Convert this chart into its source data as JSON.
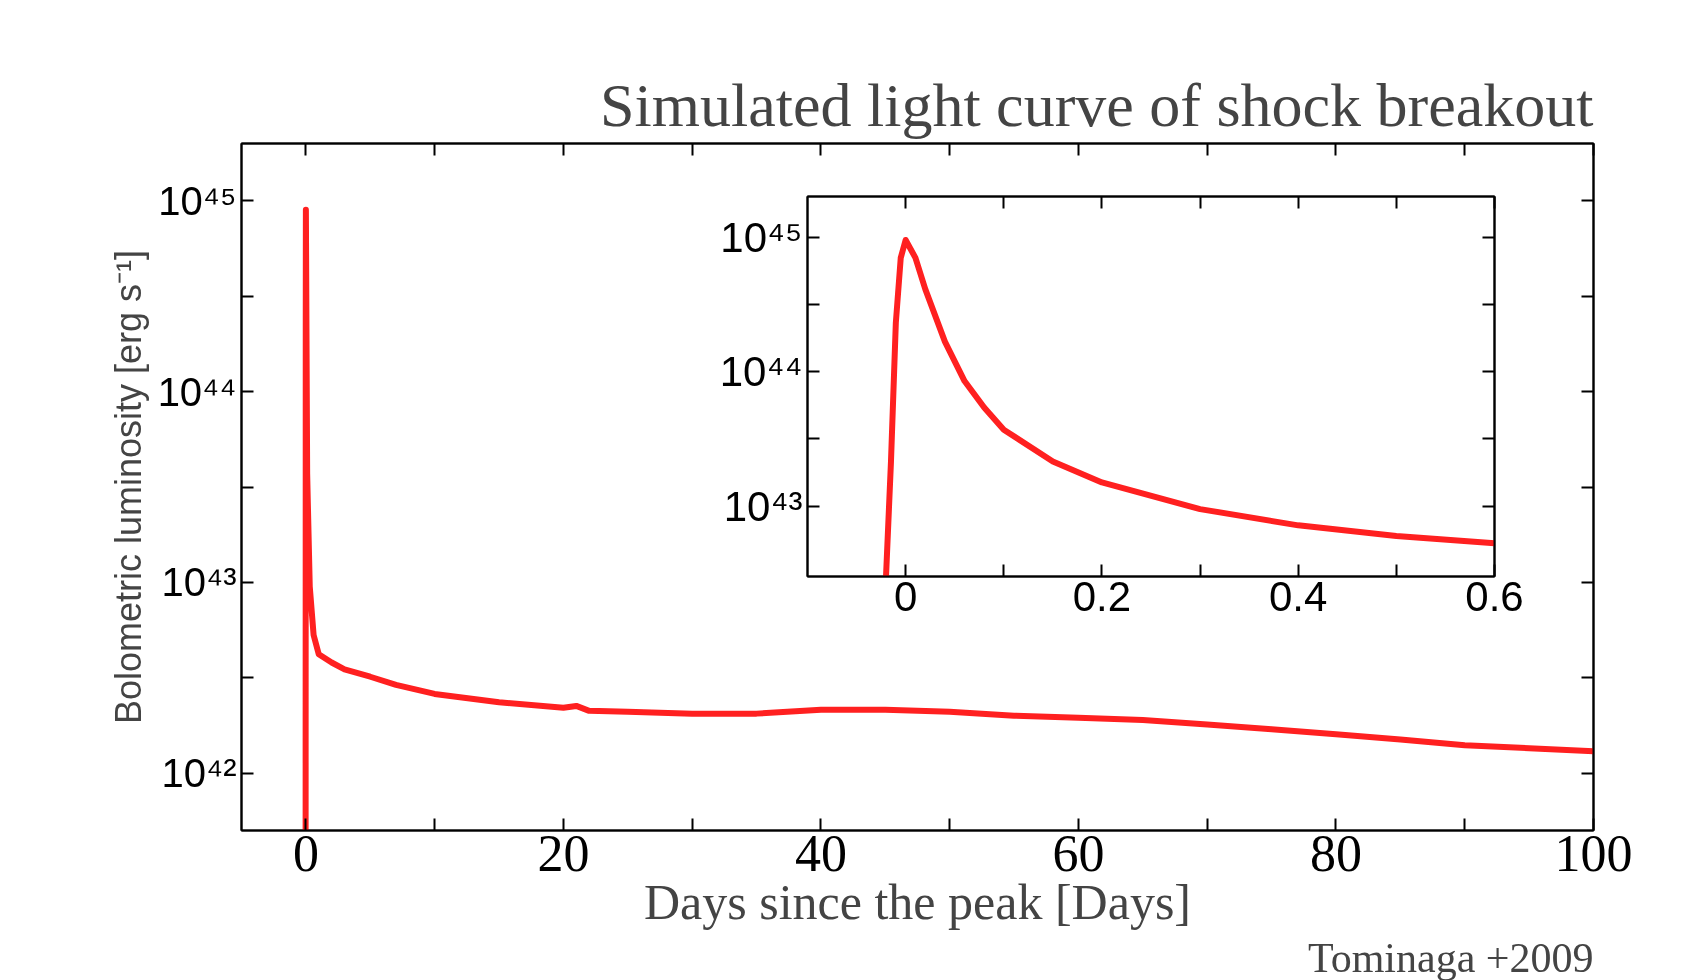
{
  "chart_data": [
    {
      "type": "line",
      "title": "Simulated light curve of shock breakout",
      "xlabel": "Days since the peak [Days]",
      "ylabel": "Bolometric luminosity [erg s⁻¹]",
      "annotations": [
        "Tominaga +2009"
      ],
      "log": "y",
      "color": "#ff2020",
      "grid": false,
      "x": [
        -0.02,
        -0.01,
        0,
        0.1,
        0.3,
        0.6,
        1,
        2,
        3,
        5,
        7,
        10,
        15,
        20,
        21,
        22,
        25,
        30,
        35,
        40,
        45,
        50,
        55,
        60,
        65,
        70,
        75,
        80,
        85,
        90,
        95,
        100
      ],
      "values": [
        5e+41,
        2.3e+44,
        9e+44,
        3.7e+43,
        9.5e+42,
        5.3e+42,
        4.2e+42,
        3.8e+42,
        3.5e+42,
        3.2e+42,
        2.9e+42,
        2.6e+42,
        2.35e+42,
        2.2e+42,
        2.25e+42,
        2.12e+42,
        2.1e+42,
        2.05e+42,
        2.05e+42,
        2.15e+42,
        2.15e+42,
        2.1e+42,
        2e+42,
        1.95e+42,
        1.9e+42,
        1.8e+42,
        1.7e+42,
        1.6e+42,
        1.5e+42,
        1.4e+42,
        1.35e+42,
        1.3e+42
      ],
      "xlim": [
        -5,
        100
      ],
      "ylim": [
        5e+41,
        2e+45
      ],
      "xticks": [
        0,
        {
          "value": 10,
          "label": null
        },
        20,
        {
          "value": 30,
          "label": null
        },
        40,
        {
          "value": 50,
          "label": null
        },
        60,
        {
          "value": 70,
          "label": null
        },
        80,
        {
          "value": 90,
          "label": null
        },
        100
      ],
      "yticks": [
        {
          "value": 1e+42,
          "label": "10⁴²"
        },
        {
          "value": 3.16e+42,
          "label": null
        },
        {
          "value": 1e+43,
          "label": "10⁴³"
        },
        {
          "value": 3.16e+43,
          "label": null
        },
        {
          "value": 1e+44,
          "label": "10⁴⁴"
        },
        {
          "value": 3.16e+44,
          "label": null
        },
        {
          "value": 1e+45,
          "label": "10⁴⁵"
        }
      ]
    },
    {
      "type": "line",
      "log": "y",
      "color": "#ff2020",
      "grid": false,
      "x": [
        -0.02,
        -0.015,
        -0.01,
        -0.005,
        0,
        0.01,
        0.02,
        0.04,
        0.06,
        0.08,
        0.1,
        0.15,
        0.2,
        0.3,
        0.4,
        0.5,
        0.6
      ],
      "values": [
        3e+42,
        2.1e+43,
        2.3e+44,
        7e+44,
        9.5e+44,
        7e+44,
        4.1e+44,
        1.67e+44,
        8.5e+43,
        5.4e+43,
        3.7e+43,
        2.15e+43,
        1.5e+43,
        9.5e+42,
        7.2e+42,
        6e+42,
        5.3e+42
      ],
      "xlim": [
        -0.1,
        0.6
      ],
      "ylim": [
        3e+42,
        2e+45
      ],
      "xticks": [
        0,
        {
          "value": 0.1,
          "label": null
        },
        0.2,
        {
          "value": 0.3,
          "label": null
        },
        0.4,
        {
          "value": 0.5,
          "label": null
        },
        0.6
      ],
      "yticks": [
        {
          "value": 1e+43,
          "label": "10⁴³"
        },
        {
          "value": 3.16e+43,
          "label": null
        },
        {
          "value": 1e+44,
          "label": "10⁴⁴"
        },
        {
          "value": 3.16e+44,
          "label": null
        },
        {
          "value": 1e+45,
          "label": "10⁴⁵"
        }
      ]
    }
  ]
}
